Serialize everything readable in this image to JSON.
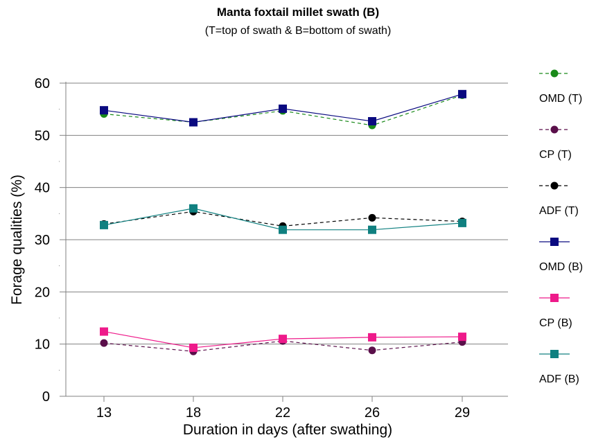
{
  "chart_data": {
    "type": "line",
    "title": "Manta foxtail millet swath (B)",
    "subtitle": "(T=top of swath & B=bottom of swath)",
    "xlabel": "Duration in days (after swathing)",
    "ylabel": "Forage qualities (%)",
    "categories": [
      "13",
      "18",
      "22",
      "26",
      "29"
    ],
    "ylim": [
      0,
      60
    ],
    "yticks": [
      "0",
      "10",
      "20",
      "30",
      "40",
      "50",
      "60"
    ],
    "grid": true,
    "legend_position": "right",
    "series": [
      {
        "name": "OMD (T)",
        "values": [
          54.1,
          52.5,
          54.7,
          51.9,
          57.7
        ],
        "color": "#1a8a1a",
        "marker": "circle",
        "dash": true
      },
      {
        "name": "CP (T)",
        "values": [
          10.2,
          8.6,
          10.6,
          8.8,
          10.4
        ],
        "color": "#5a0f4a",
        "marker": "circle",
        "dash": true
      },
      {
        "name": "ADF (T)",
        "values": [
          33.0,
          35.4,
          32.6,
          34.2,
          33.5
        ],
        "color": "#000000",
        "marker": "circle",
        "dash": true
      },
      {
        "name": "OMD (B)",
        "values": [
          54.8,
          52.5,
          55.1,
          52.7,
          57.9
        ],
        "color": "#0a0a80",
        "marker": "square",
        "dash": false
      },
      {
        "name": "CP (B)",
        "values": [
          12.4,
          9.3,
          11.0,
          11.3,
          11.4
        ],
        "color": "#ee1a8a",
        "marker": "square",
        "dash": false
      },
      {
        "name": "ADF (B)",
        "values": [
          32.8,
          36.0,
          31.9,
          31.9,
          33.2
        ],
        "color": "#108080",
        "marker": "square",
        "dash": false
      }
    ]
  }
}
